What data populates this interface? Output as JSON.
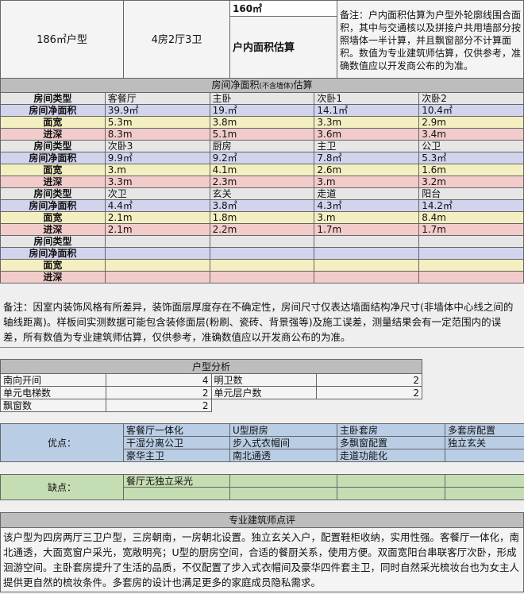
{
  "top": {
    "unit_type": "186㎡户型",
    "layout": "4房2厅3卫",
    "area_value": "160㎡",
    "area_label": "户内面积估算",
    "area_note": "备注：户内面积估算为户型外轮廓线围合面积，其中与交通核以及拼接户共用墙部分按照墙体一半计算，并且飘窗部分不计算面积。数值为专业建筑师估算，仅供参考，准确数值应以开发商公布的为准。"
  },
  "rooms": {
    "title": "房间净面积",
    "title_small": "(不含墙体)",
    "title_end": "估算",
    "row_labels": {
      "type": "房间类型",
      "area": "房间净面积",
      "width": "面宽",
      "depth": "进深"
    },
    "groups": [
      {
        "names": [
          "客餐厅",
          "主卧",
          "次卧1",
          "次卧2"
        ],
        "areas": [
          "39.9㎡",
          "19.㎡",
          "14.1㎡",
          "10.4㎡"
        ],
        "widths": [
          "5.3m",
          "3.8m",
          "3.3m",
          "2.9m"
        ],
        "depths": [
          "8.3m",
          "5.1m",
          "3.6m",
          "3.4m"
        ]
      },
      {
        "names": [
          "次卧3",
          "厨房",
          "主卫",
          "公卫"
        ],
        "areas": [
          "9.9㎡",
          "9.2㎡",
          "7.8㎡",
          "5.3㎡"
        ],
        "widths": [
          "3.m",
          "4.1m",
          "2.6m",
          "1.6m"
        ],
        "depths": [
          "3.3m",
          "2.3m",
          "3.m",
          "3.2m"
        ]
      },
      {
        "names": [
          "次卫",
          "玄关",
          "走道",
          "阳台"
        ],
        "areas": [
          "4.4㎡",
          "3.8㎡",
          "4.3㎡",
          "14.2㎡"
        ],
        "widths": [
          "2.1m",
          "1.8m",
          "3.m",
          "8.4m"
        ],
        "depths": [
          "2.1m",
          "2.2m",
          "1.7m",
          "1.7m"
        ]
      },
      {
        "names": [
          "",
          "",
          "",
          ""
        ],
        "areas": [
          "",
          "",
          "",
          ""
        ],
        "widths": [
          "",
          "",
          "",
          ""
        ],
        "depths": [
          "",
          "",
          "",
          ""
        ]
      }
    ],
    "note": "备注：因室内装饰风格有所差异，装饰面层厚度存在不确定性，房间尺寸仅表达墙面结构净尺寸(非墙体中心线之间的轴线距离)。样板间实测数据可能包含装修面层(粉刷、瓷砖、背景强等)及施工误差，测量结果会有一定范围内的误差，所有数值为专业建筑师估算，仅供参考，准确数值应以开发商公布的为准。"
  },
  "analysis": {
    "title": "户型分析",
    "items": [
      [
        "南向开间",
        "4",
        "明卫数",
        "2"
      ],
      [
        "单元电梯数",
        "2",
        "单元层户数",
        "2"
      ],
      [
        "飘窗数",
        "2"
      ]
    ]
  },
  "pros": {
    "label": "优点：",
    "items": [
      [
        "客餐厅一体化",
        "U型厨房",
        "主卧套房",
        "多套房配置"
      ],
      [
        "干湿分离公卫",
        "步入式衣帽间",
        "多飘窗配置",
        "独立玄关"
      ],
      [
        "豪华主卫",
        "南北通透",
        "走道功能化",
        ""
      ]
    ]
  },
  "cons": {
    "label": "缺点：",
    "items": [
      [
        "餐厅无独立采光",
        "",
        "",
        ""
      ],
      [
        "",
        "",
        "",
        ""
      ]
    ]
  },
  "review": {
    "title": "专业建筑师点评",
    "text": "该户型为四房两厅三卫户型，三房朝南，一房朝北设置。独立玄关入户，配置鞋柜收纳，实用性强。客餐厅一体化，南北通透，大面宽窗户采光，宽敞明亮；U型的厨房空间，合适的餐厨关系，使用方便。双面宽阳台串联客厅次卧，形成洄游空间。主卧套房提升了生活的品质，不仅配置了步入式衣帽间及豪华四件套主卫，同时自然采光梳妆台也为女主人提供更自然的梳妆条件。多套房的设计也满足更多的家庭成员隐私需求。"
  }
}
